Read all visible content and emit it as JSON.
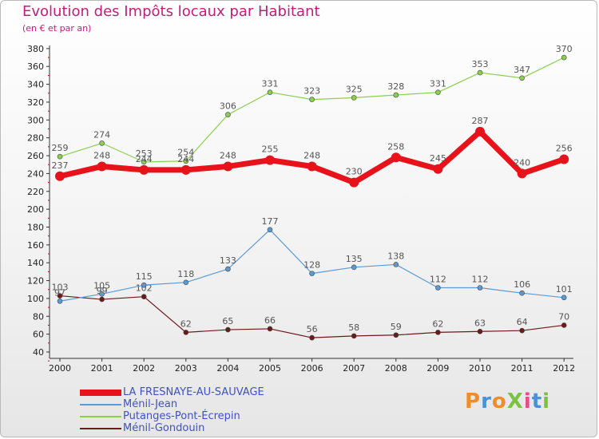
{
  "title": "Evolution des Impôts locaux par Habitant",
  "subtitle": "(en € et par an)",
  "logo": {
    "text": "ProXiti",
    "colors": [
      "#f28c28",
      "#4a90d9",
      "#f28c28",
      "#7cc242",
      "#e94b8a",
      "#4a90d9",
      "#7cc242"
    ]
  },
  "chart_data": {
    "type": "line",
    "title": "Evolution des Impôts locaux par Habitant",
    "subtitle": "(en € et par an)",
    "xlabel": "",
    "ylabel": "",
    "x": [
      "2000",
      "2001",
      "2002",
      "2003",
      "2004",
      "2005",
      "2006",
      "2007",
      "2008",
      "2009",
      "2010",
      "2011",
      "2012"
    ],
    "ylim": [
      40,
      380
    ],
    "yticks": [
      40,
      60,
      80,
      100,
      120,
      140,
      160,
      180,
      200,
      220,
      240,
      260,
      280,
      300,
      320,
      340,
      360,
      380
    ],
    "grid": false,
    "legend_position": "bottom-left",
    "series": [
      {
        "name": "Ménil-Gondouin",
        "color": "#6b1a1a",
        "values": [
          103,
          99,
          102,
          62,
          65,
          66,
          56,
          58,
          59,
          62,
          63,
          64,
          70
        ]
      },
      {
        "name": "Ménil-Jean",
        "color": "#5b9bd5",
        "values": [
          97,
          105,
          115,
          118,
          133,
          177,
          128,
          135,
          138,
          112,
          112,
          106,
          101
        ]
      },
      {
        "name": "Putanges-Pont-Écrepin",
        "color": "#8ad050",
        "values": [
          259,
          274,
          253,
          254,
          306,
          331,
          323,
          325,
          328,
          331,
          353,
          347,
          370
        ]
      },
      {
        "name": "LA FRESNAYE-AU-SAUVAGE",
        "color": "#e8131a",
        "values": [
          237,
          248,
          244,
          244,
          248,
          255,
          248,
          230,
          258,
          245,
          287,
          240,
          256
        ]
      }
    ],
    "legend_order": [
      "LA FRESNAYE-AU-SAUVAGE",
      "Ménil-Jean",
      "Putanges-Pont-Écrepin",
      "Ménil-Gondouin"
    ]
  }
}
